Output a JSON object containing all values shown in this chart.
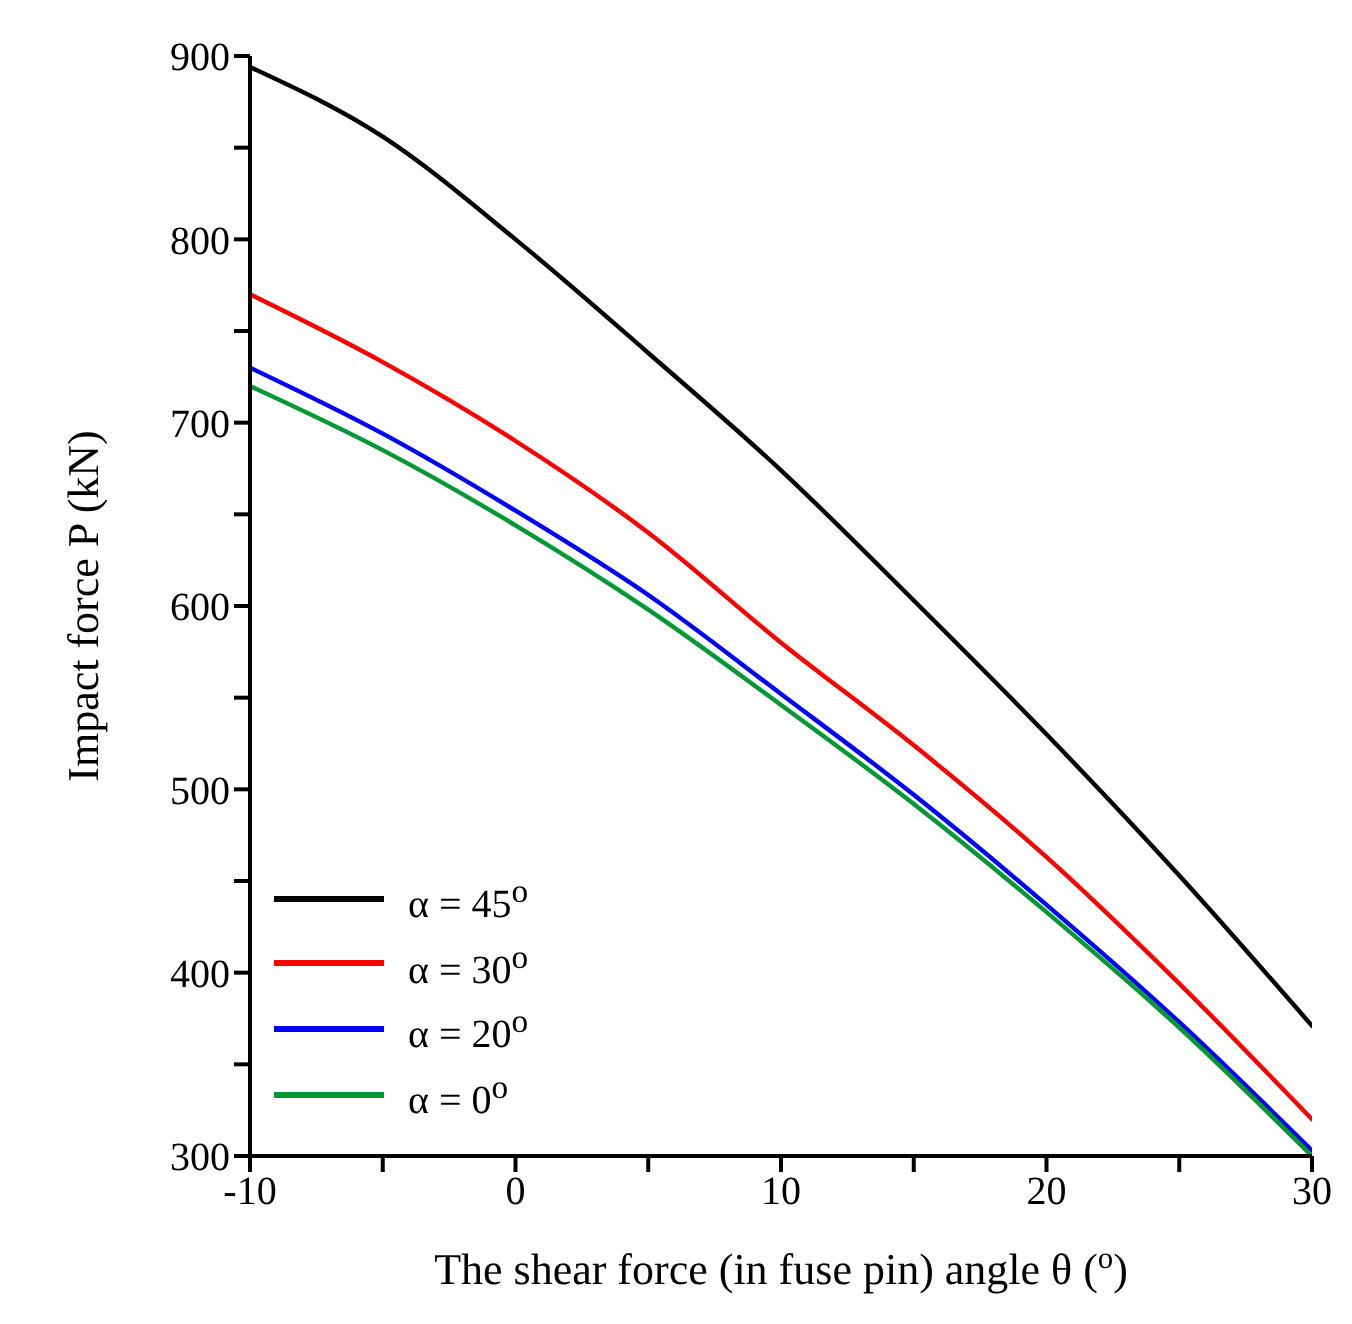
{
  "chart_data": {
    "type": "line",
    "xlabel": "The shear force (in fuse pin) angle θ ($^{o}$)",
    "ylabel": "Impact force P (kN)",
    "x": [
      -10,
      -5,
      0,
      5,
      10,
      15,
      20,
      25,
      30
    ],
    "series": [
      {
        "name": "α = 45$^{o}$",
        "color": "#000000",
        "values": [
          894,
          856,
          800,
          738,
          674,
          603,
          530,
          453,
          371
        ]
      },
      {
        "name": "α = 30$^{o}$",
        "color": "#ff0000",
        "values": [
          770,
          733,
          690,
          640,
          580,
          524,
          463,
          394,
          320
        ]
      },
      {
        "name": "α = 20$^{o}$",
        "color": "#0000ff",
        "values": [
          730,
          694,
          652,
          606,
          552,
          497,
          437,
          373,
          303
        ]
      },
      {
        "name": "α = 0$^{o}$",
        "color": "#009933",
        "values": [
          720,
          685,
          644,
          598,
          546,
          492,
          433,
          370,
          300
        ]
      }
    ],
    "xlim": [
      -10,
      30
    ],
    "xticks": [
      -10,
      {
        "value": -5,
        "label": null
      },
      0,
      {
        "value": 5,
        "label": null
      },
      10,
      {
        "value": 15,
        "label": null
      },
      20,
      {
        "value": 25,
        "label": null
      },
      30
    ],
    "ylim": [
      300,
      900
    ],
    "yticks": [
      300,
      {
        "value": 350,
        "label": null
      },
      400,
      {
        "value": 450,
        "label": null
      },
      500,
      {
        "value": 550,
        "label": null
      },
      600,
      {
        "value": 650,
        "label": null
      },
      700,
      {
        "value": 750,
        "label": null
      },
      800,
      {
        "value": 850,
        "label": null
      },
      900
    ],
    "grid": false,
    "legend": "bottom left",
    "marker": "none",
    "line_style": "solid"
  }
}
